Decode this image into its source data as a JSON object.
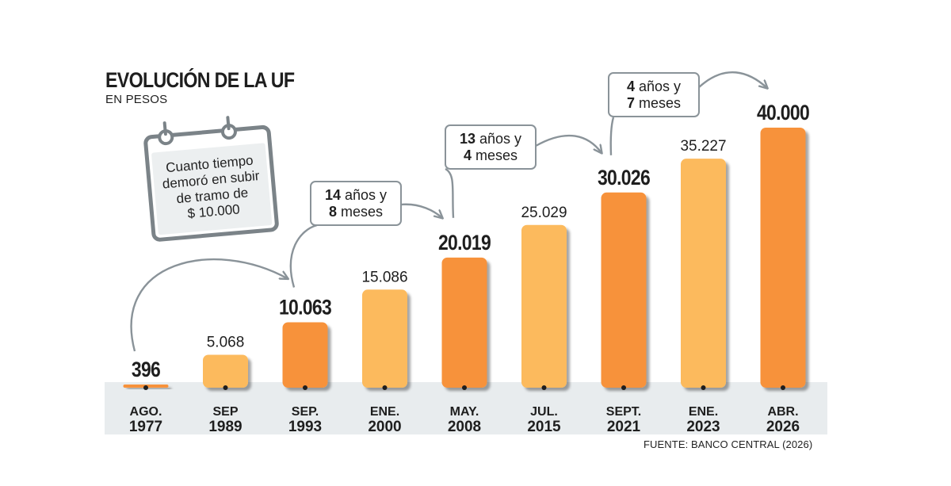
{
  "chart_data": {
    "type": "bar",
    "title": "EVOLUCIÓN DE LA UF",
    "subtitle": "EN PESOS",
    "unit": "pesos",
    "categories": [
      [
        "AGO.",
        "1977"
      ],
      [
        "SEP",
        "1989"
      ],
      [
        "SEP.",
        "1993"
      ],
      [
        "ENE.",
        "2000"
      ],
      [
        "MAY.",
        "2008"
      ],
      [
        "JUL.",
        "2015"
      ],
      [
        "SEPT.",
        "2021"
      ],
      [
        "ENE.",
        "2023"
      ],
      [
        "ABR.",
        "2026"
      ]
    ],
    "values": [
      396,
      5068,
      10063,
      15086,
      20019,
      25029,
      30026,
      35227,
      40000
    ],
    "value_labels": [
      "396",
      "5.068",
      "10.063",
      "15.086",
      "20.019",
      "25.029",
      "30.026",
      "35.227",
      "40.000"
    ],
    "milestones": [
      0,
      2,
      4,
      6,
      8
    ],
    "ylim": [
      0,
      40000
    ],
    "grid": false,
    "legend": "none",
    "colors": {
      "milestone_bar": "#f7923a",
      "regular_bar": "#fcba5d",
      "axis_band": "#e8ecee",
      "arrow": "#8a9399",
      "text": "#1e1e1e"
    },
    "annotations": [
      {
        "from": 0,
        "to": 2,
        "lines": [
          "",
          ""
        ],
        "note": "arc without label"
      },
      {
        "from": 2,
        "to": 4,
        "lines": [
          "14 años y",
          "8 meses"
        ]
      },
      {
        "from": 4,
        "to": 6,
        "lines": [
          "13 años y",
          "4 meses"
        ]
      },
      {
        "from": 6,
        "to": 8,
        "lines": [
          "4 años y",
          "7 meses"
        ]
      }
    ],
    "callout": {
      "icon": "calendar-icon",
      "lines": [
        "Cuanto tiempo",
        "demoró en subir",
        "de tramo de",
        "$ 10.000"
      ]
    }
  },
  "source": "FUENTE: BANCO CENTRAL (2026)"
}
